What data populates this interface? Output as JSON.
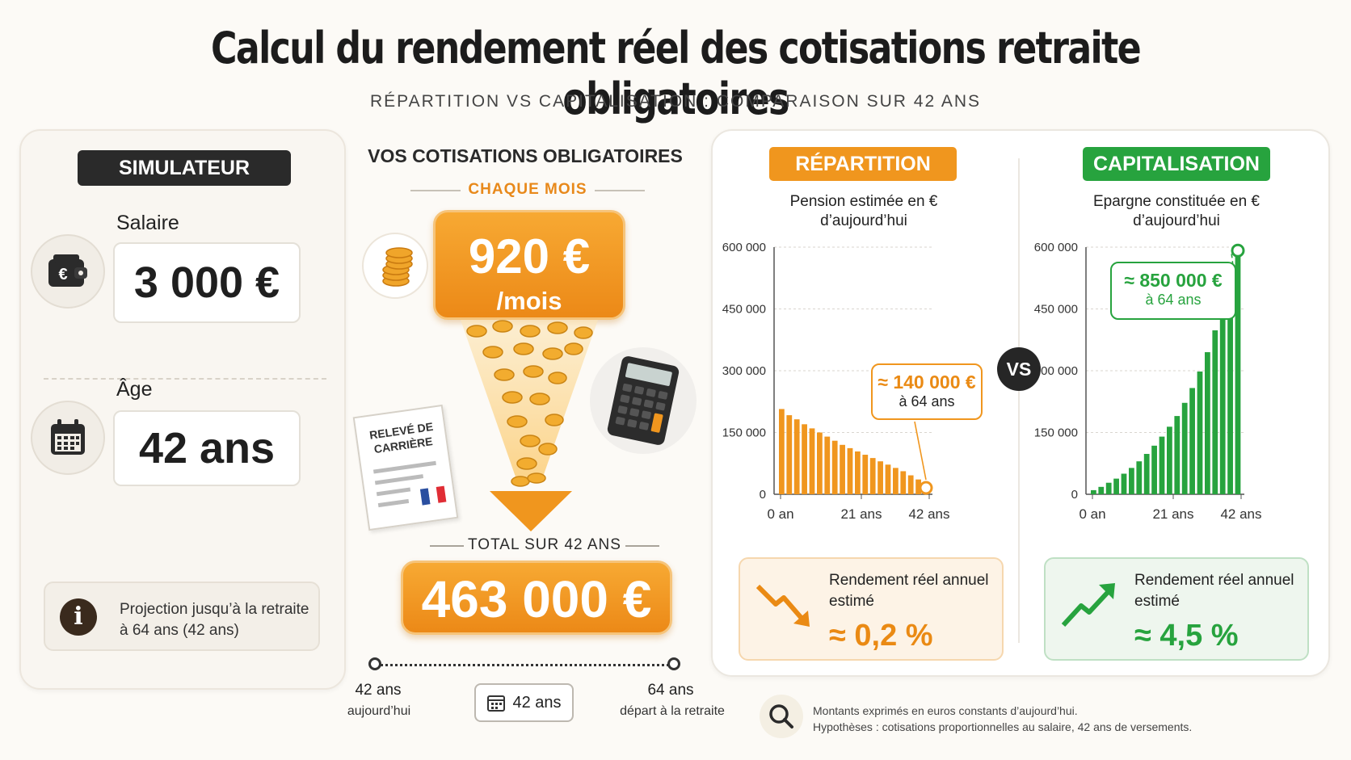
{
  "header": {
    "title": "Calcul du rendement réel des cotisations retraite obligatoires",
    "subtitle": "RÉPARTITION VS CAPITALISATION : COMPARAISON SUR 42 ANS"
  },
  "simulator": {
    "badge": "SIMULATEUR",
    "salary_label": "Salaire",
    "salary_value": "3 000 €",
    "age_label": "Âge",
    "age_value": "42 ans",
    "info_text": "Projection jusqu’à la retraite à 64 ans (42 ans)"
  },
  "contributions": {
    "heading": "VOS COTISATIONS OBLIGATOIRES",
    "monthly_caption": "CHAQUE MOIS",
    "monthly_value": "920 €",
    "monthly_unit": "/mois",
    "doc_label": "RELEVÉ DE CARRIÈRE",
    "total_caption": "TOTAL SUR 42 ANS",
    "total_value": "463 000 €",
    "timeline": {
      "start_value": "42 ans",
      "start_caption": "aujourd’hui",
      "duration": "42 ans",
      "end_value": "64 ans",
      "end_caption": "départ à la retraite"
    }
  },
  "comparison": {
    "vs": "VS",
    "repartition": {
      "badge": "RÉPARTITION",
      "subtitle_line1": "Pension estimée en €",
      "subtitle_line2": "d’aujourd’hui",
      "callout_value": "≈ 140 000 €",
      "callout_caption": "à 64 ans",
      "return_title": "Rendement réel annuel estimé",
      "return_value": "≈ 0,2 %",
      "color": "#f0961e"
    },
    "capitalisation": {
      "badge": "CAPITALISATION",
      "subtitle_line1": "Epargne constituée en €",
      "subtitle_line2": "d’aujourd’hui",
      "callout_value": "≈ 850 000 €",
      "callout_caption": "à 64 ans",
      "return_title": "Rendement réel annuel estimé",
      "return_value": "≈ 4,5 %",
      "color": "#27a33e"
    }
  },
  "footnote": {
    "line1": "Montants exprimés en euros constants d’aujourd’hui.",
    "line2": "Hypothèses : cotisations proportionnelles au salaire, 42 ans de versements."
  },
  "chart_data": [
    {
      "type": "bar",
      "ylim": [
        0,
        600000
      ],
      "yticks": [
        "0",
        "150 000",
        "300 000",
        "450 000",
        "600 000"
      ],
      "xticks": [
        "0 an",
        "21 ans",
        "42 ans"
      ],
      "categories": [
        "0",
        "1",
        "2",
        "3",
        "4",
        "5",
        "6",
        "7",
        "8",
        "9",
        "10",
        "11",
        "12",
        "13",
        "14",
        "15",
        "16",
        "17",
        "18",
        "19"
      ],
      "values": [
        207000,
        192000,
        182000,
        170000,
        160000,
        150000,
        140000,
        130000,
        120000,
        112000,
        104000,
        96000,
        88000,
        80000,
        72000,
        64000,
        56000,
        46000,
        36000,
        24000
      ],
      "grid": true
    },
    {
      "type": "bar",
      "ylim": [
        0,
        600000
      ],
      "yticks": [
        "0",
        "150 000",
        "300 000",
        "450 000",
        "600 000"
      ],
      "xticks": [
        "0 an",
        "21 ans",
        "42 ans"
      ],
      "categories": [
        "0",
        "1",
        "2",
        "3",
        "4",
        "5",
        "6",
        "7",
        "8",
        "9",
        "10",
        "11",
        "12",
        "13",
        "14",
        "15",
        "16",
        "17",
        "18",
        "19"
      ],
      "values": [
        10000,
        18000,
        28000,
        38000,
        50000,
        64000,
        80000,
        98000,
        118000,
        140000,
        164000,
        190000,
        222000,
        258000,
        298000,
        345000,
        398000,
        456000,
        520000,
        580000
      ],
      "grid": true
    }
  ]
}
